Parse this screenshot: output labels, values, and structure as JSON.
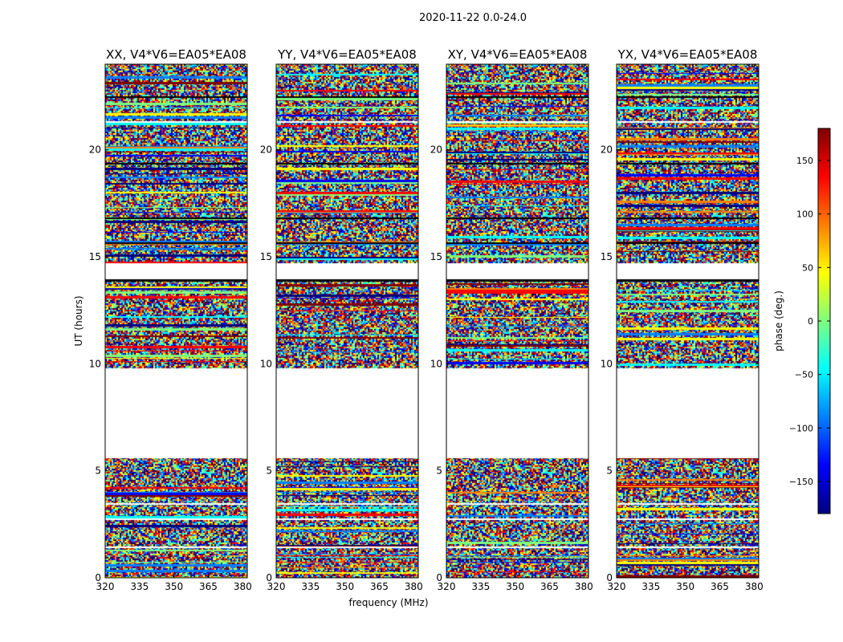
{
  "figure": {
    "suptitle": "2020-11-22 0.0-24.0",
    "xlabel": "frequency (MHz)",
    "ylabel": "UT (hours)"
  },
  "colorbar": {
    "label": "phase (deg.)",
    "range": [
      -180,
      180
    ],
    "ticks": [
      150,
      100,
      50,
      0,
      -50,
      -100,
      -150
    ],
    "tick_labels": [
      "150",
      "100",
      "50",
      "0",
      "−50",
      "−100",
      "−150"
    ],
    "colormap": [
      "#00007f",
      "#0000ff",
      "#007fff",
      "#00ffff",
      "#7fff7f",
      "#ffff00",
      "#ff7f00",
      "#ff0000",
      "#7f0000"
    ]
  },
  "chart_data": {
    "type": "heatmap",
    "x_range": [
      320,
      382
    ],
    "y_range": [
      0,
      24
    ],
    "x_ticks": [
      320,
      335,
      350,
      365,
      380
    ],
    "y_ticks": [
      0,
      5,
      10,
      15,
      20
    ],
    "value": "phase (deg.)",
    "no_data_hours": [
      [
        5.6,
        9.8
      ],
      [
        13.95,
        14.65
      ]
    ],
    "panels": [
      {
        "title": "XX, V4*V6=EA05*EA08",
        "x_ticks": [
          "320",
          "335",
          "350",
          "365",
          "380"
        ],
        "y_ticks": [
          "0",
          "5",
          "10",
          "15",
          "20"
        ]
      },
      {
        "title": "YY, V4*V6=EA05*EA08",
        "x_ticks": [
          "320",
          "335",
          "350",
          "365",
          "380"
        ],
        "y_ticks": [
          "0",
          "5",
          "10",
          "15",
          "20"
        ]
      },
      {
        "title": "XY, V4*V6=EA05*EA08",
        "x_ticks": [
          "320",
          "335",
          "350",
          "365",
          "380"
        ],
        "y_ticks": [
          "0",
          "5",
          "10",
          "15",
          "20"
        ]
      },
      {
        "title": "YX, V4*V6=EA05*EA08",
        "x_ticks": [
          "320",
          "335",
          "350",
          "365",
          "380"
        ],
        "y_ticks": [
          "0",
          "5",
          "10",
          "15",
          "20"
        ]
      }
    ]
  }
}
